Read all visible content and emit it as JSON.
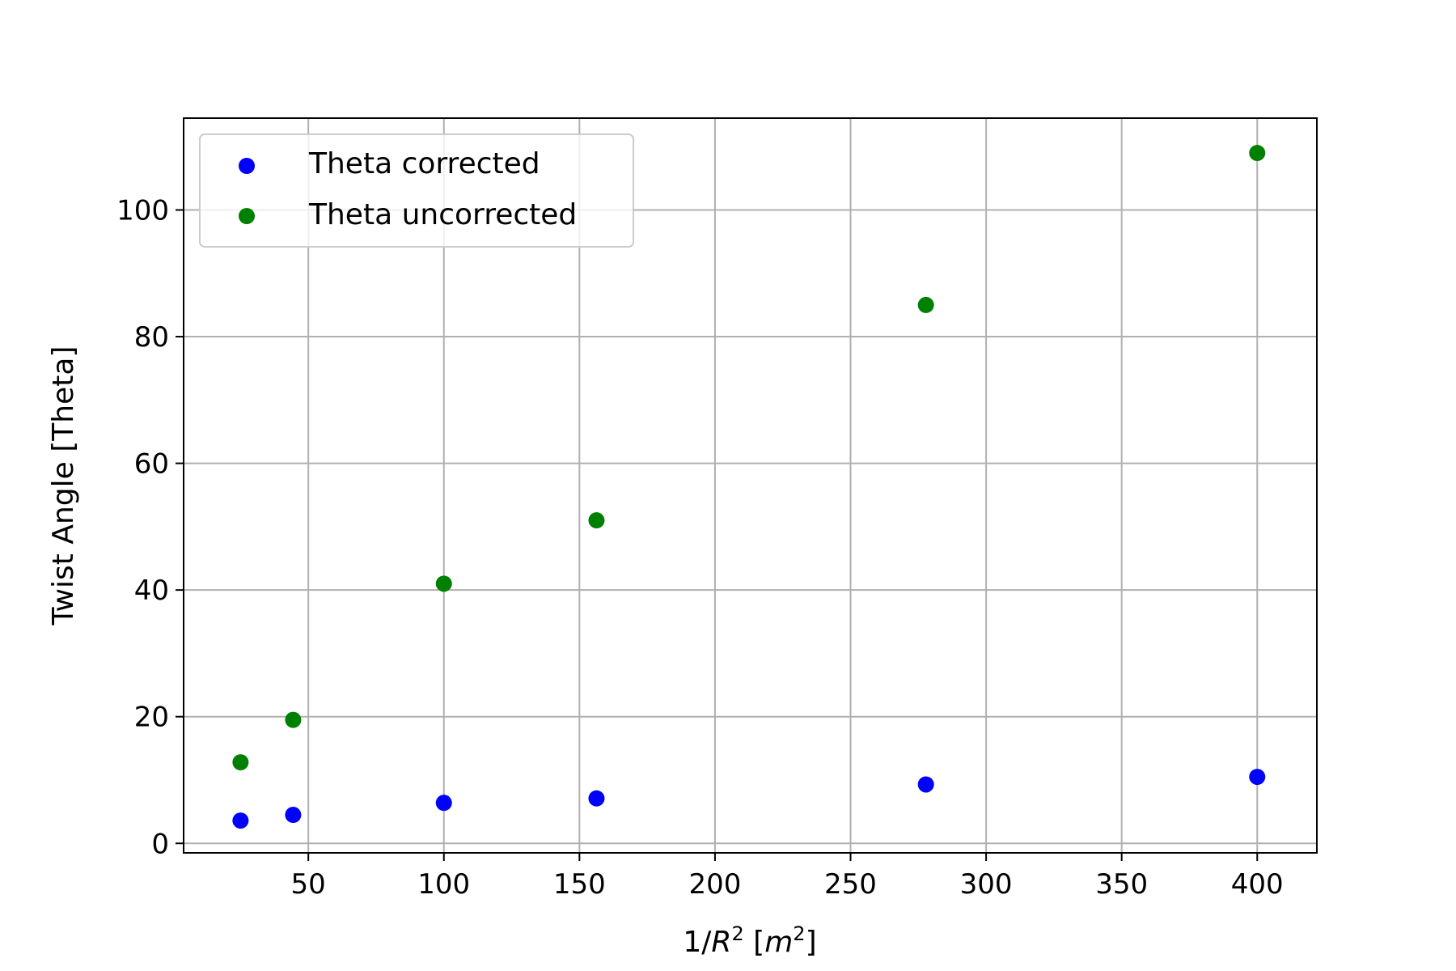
{
  "chart_data": {
    "type": "scatter",
    "title": "",
    "xlabel": {
      "prefix": "1/",
      "var": "R",
      "exp": "2",
      "unit_open": " [",
      "unit_var": "m",
      "unit_exp": "2",
      "unit_close": "]"
    },
    "ylabel": "Twist Angle [Theta]",
    "xlim": [
      4,
      422
    ],
    "ylim": [
      -1.5,
      114.5
    ],
    "xticks": [
      50,
      100,
      150,
      200,
      250,
      300,
      350,
      400
    ],
    "yticks": [
      0,
      20,
      40,
      60,
      80,
      100
    ],
    "grid": true,
    "legend_position": "top-left",
    "series": [
      {
        "name": "Theta corrected",
        "color": "#0000ff",
        "points": [
          {
            "x": 25,
            "y": 3.6
          },
          {
            "x": 44.4,
            "y": 4.5
          },
          {
            "x": 100,
            "y": 6.4
          },
          {
            "x": 156.3,
            "y": 7.1
          },
          {
            "x": 277.8,
            "y": 9.3
          },
          {
            "x": 400,
            "y": 10.5
          }
        ]
      },
      {
        "name": "Theta uncorrected",
        "color": "#008000",
        "points": [
          {
            "x": 25,
            "y": 12.8
          },
          {
            "x": 44.4,
            "y": 19.5
          },
          {
            "x": 100,
            "y": 41
          },
          {
            "x": 156.3,
            "y": 51
          },
          {
            "x": 277.8,
            "y": 85
          },
          {
            "x": 400,
            "y": 109
          }
        ]
      }
    ]
  }
}
